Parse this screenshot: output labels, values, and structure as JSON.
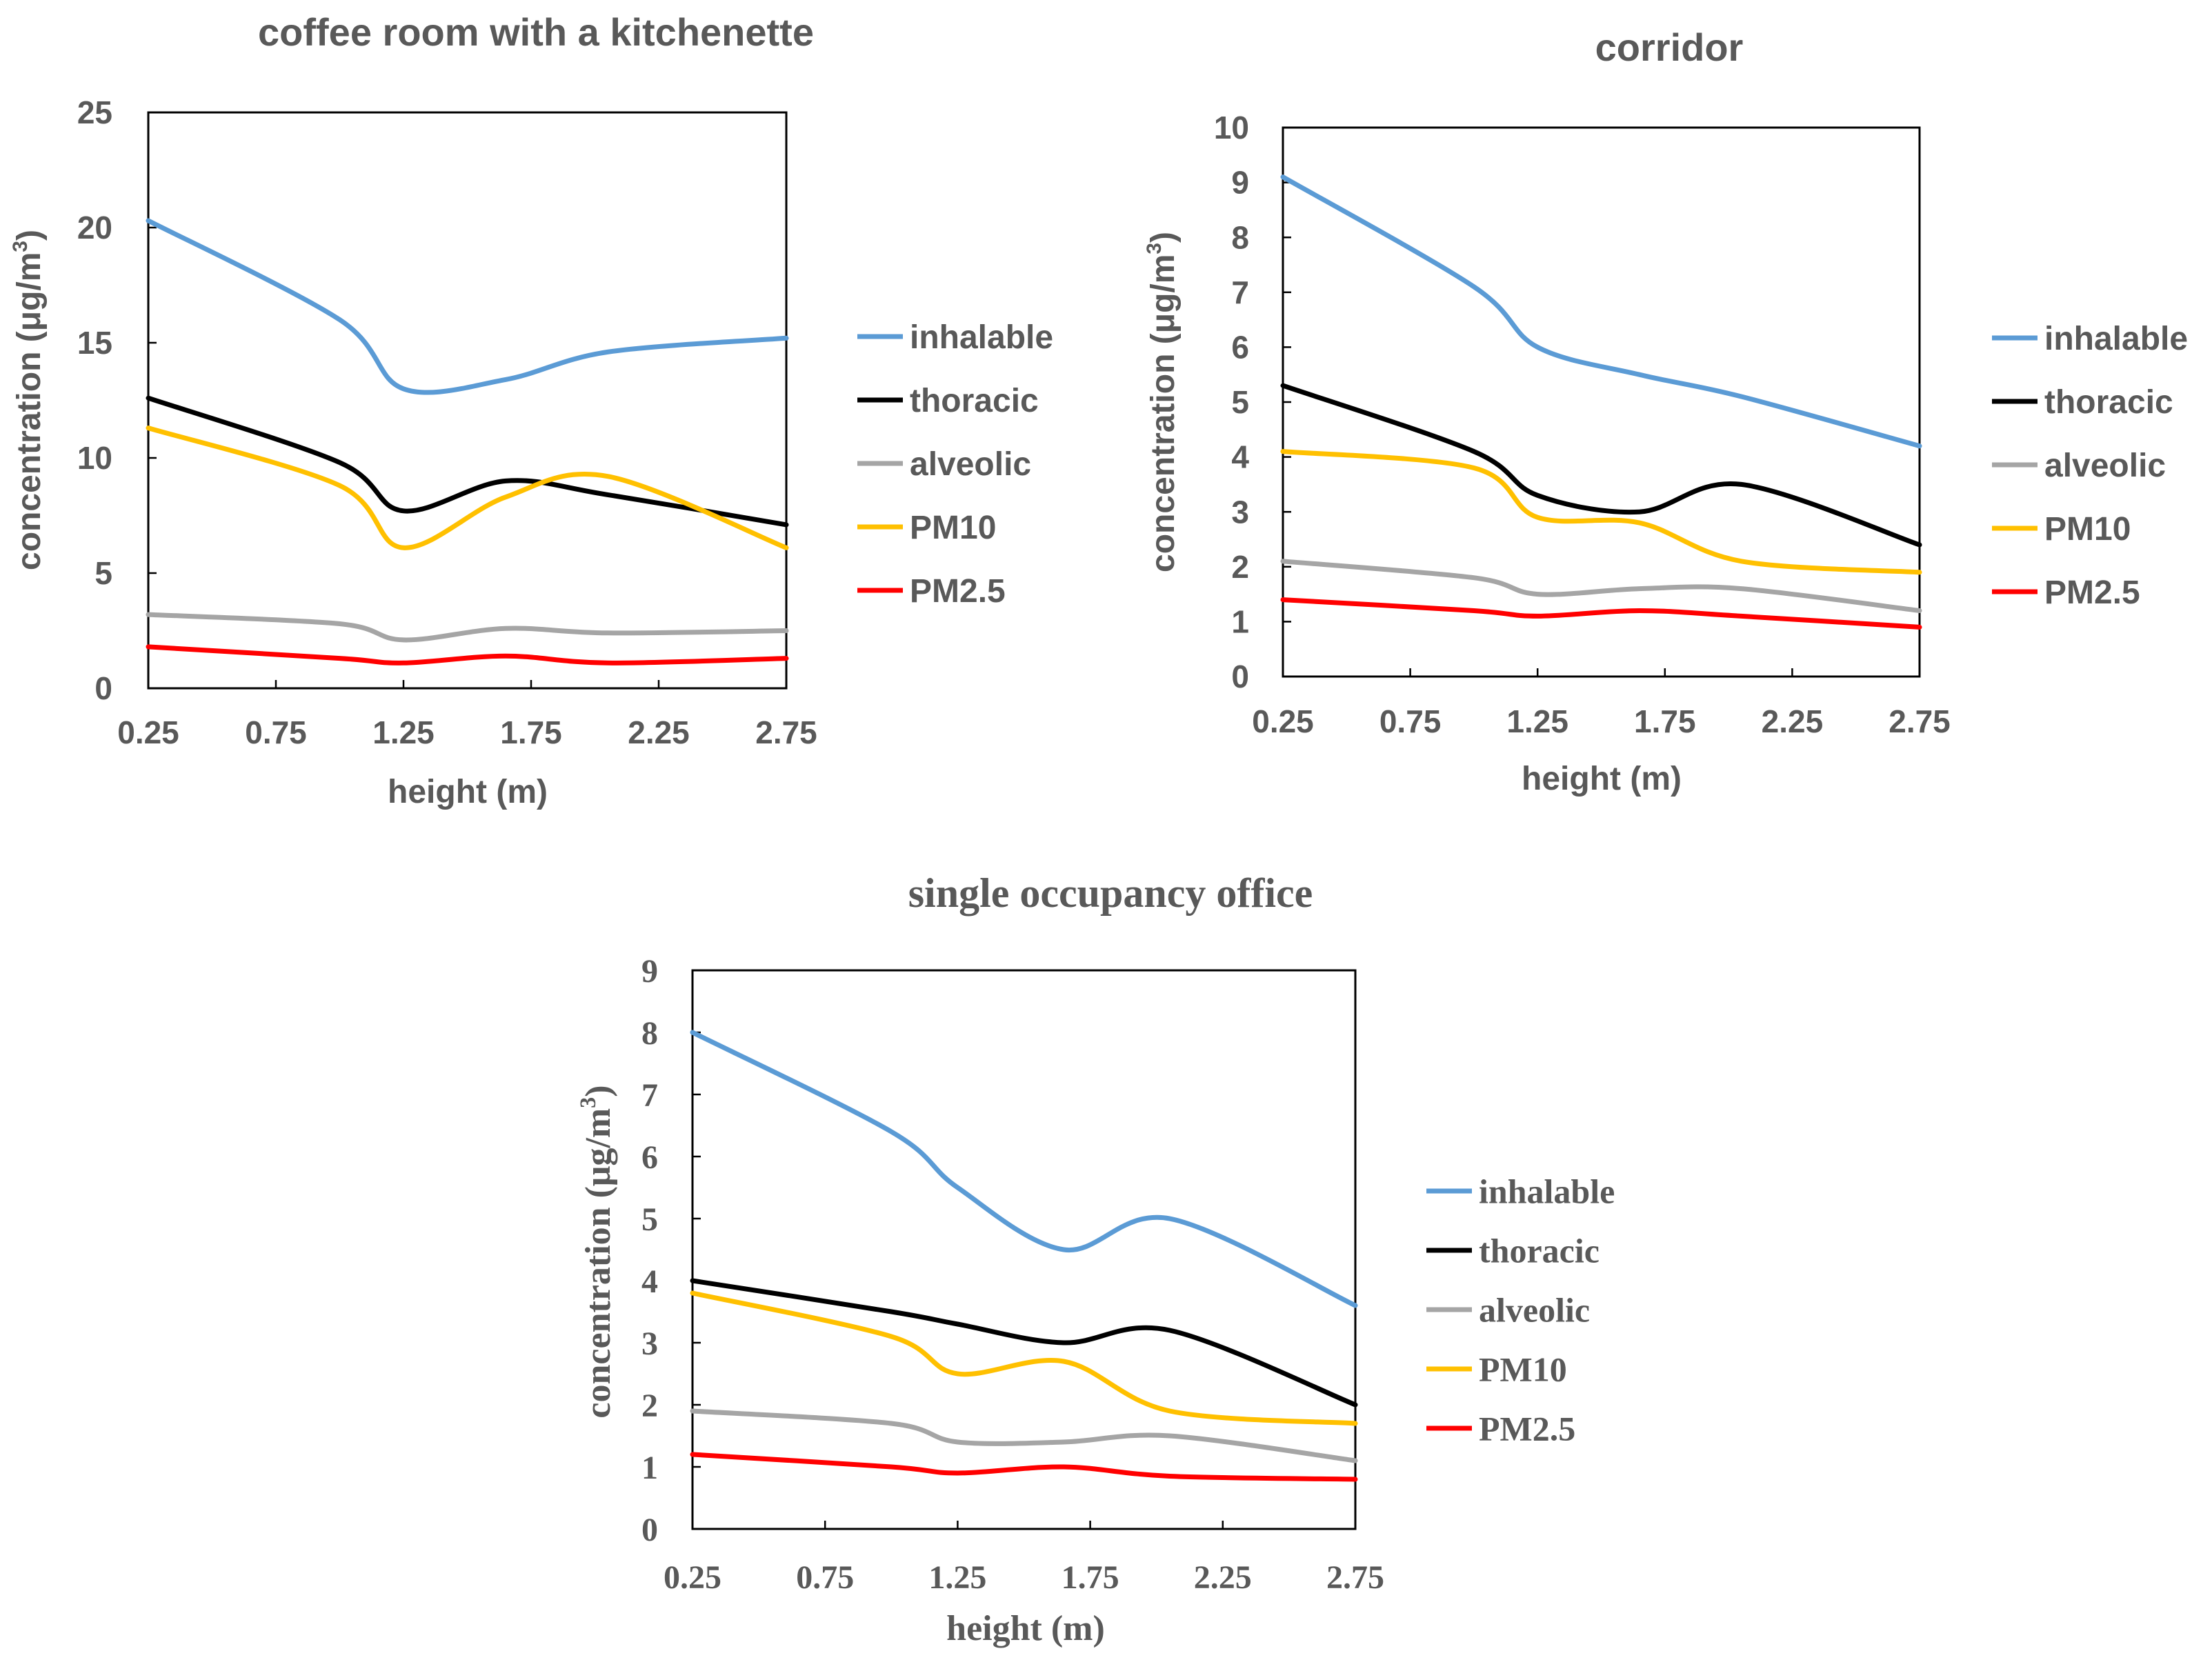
{
  "chart_data": [
    {
      "type": "line",
      "title": "coffee room with a kitchenette",
      "xlabel": "height (m)",
      "ylabel": "concentration (μg/m3)",
      "ylabel_main": "concentration (μg/m",
      "ylabel_sup": "3",
      "ylabel_close": ")",
      "x": [
        0.25,
        0.75,
        1.25,
        1.75,
        2.25,
        2.75
      ],
      "xticks": [
        "0.25",
        "0.75",
        "1.25",
        "1.75",
        "2.25",
        "2.75"
      ],
      "xlim": [
        0.25,
        2.75
      ],
      "ylim": [
        0,
        25
      ],
      "yticks": [
        "0",
        "5",
        "10",
        "15",
        "20",
        "25"
      ],
      "legend_position": "right",
      "series": [
        {
          "name": "inhalable",
          "color": "#5B9BD5",
          "x": [
            0.25,
            1.0,
            1.25,
            1.65,
            2.05,
            2.75
          ],
          "values": [
            20.3,
            16.0,
            13.0,
            13.4,
            14.6,
            15.2
          ]
        },
        {
          "name": "thoracic",
          "color": "#000000",
          "x": [
            0.25,
            1.0,
            1.25,
            1.65,
            2.05,
            2.75
          ],
          "values": [
            12.6,
            9.8,
            7.7,
            9.0,
            8.4,
            7.1
          ]
        },
        {
          "name": "alveolic",
          "color": "#A5A5A5",
          "x": [
            0.25,
            1.0,
            1.25,
            1.65,
            2.05,
            2.75
          ],
          "values": [
            3.2,
            2.8,
            2.1,
            2.6,
            2.4,
            2.5
          ]
        },
        {
          "name": "PM10",
          "color": "#FFC000",
          "x": [
            0.25,
            1.0,
            1.25,
            1.65,
            2.05,
            2.75
          ],
          "values": [
            11.3,
            8.8,
            6.1,
            8.3,
            9.2,
            6.1
          ]
        },
        {
          "name": "PM2.5",
          "color": "#FF0000",
          "x": [
            0.25,
            1.0,
            1.25,
            1.65,
            2.05,
            2.75
          ],
          "values": [
            1.8,
            1.3,
            1.1,
            1.4,
            1.1,
            1.3
          ]
        }
      ]
    },
    {
      "type": "line",
      "title": "corridor",
      "xlabel": "height (m)",
      "ylabel": "concentration (μg/m3)",
      "ylabel_main": "concentration (μg/m",
      "ylabel_sup": "3",
      "ylabel_close": ")",
      "x": [
        0.25,
        0.75,
        1.25,
        1.75,
        2.25,
        2.75
      ],
      "xticks": [
        "0.25",
        "0.75",
        "1.25",
        "1.75",
        "2.25",
        "2.75"
      ],
      "xlim": [
        0.25,
        2.75
      ],
      "ylim": [
        0,
        10
      ],
      "yticks": [
        "0",
        "1",
        "2",
        "3",
        "4",
        "5",
        "6",
        "7",
        "8",
        "9",
        "10"
      ],
      "legend_position": "right",
      "series": [
        {
          "name": "inhalable",
          "color": "#5B9BD5",
          "x": [
            0.25,
            1.0,
            1.25,
            1.65,
            2.05,
            2.75
          ],
          "values": [
            9.1,
            7.1,
            6.0,
            5.5,
            5.1,
            4.2
          ]
        },
        {
          "name": "thoracic",
          "color": "#000000",
          "x": [
            0.25,
            1.0,
            1.25,
            1.65,
            2.05,
            2.75
          ],
          "values": [
            5.3,
            4.1,
            3.3,
            3.0,
            3.5,
            2.4
          ]
        },
        {
          "name": "alveolic",
          "color": "#A5A5A5",
          "x": [
            0.25,
            1.0,
            1.25,
            1.65,
            2.05,
            2.75
          ],
          "values": [
            2.1,
            1.8,
            1.5,
            1.6,
            1.6,
            1.2
          ]
        },
        {
          "name": "PM10",
          "color": "#FFC000",
          "x": [
            0.25,
            1.0,
            1.25,
            1.65,
            2.05,
            2.75
          ],
          "values": [
            4.1,
            3.8,
            2.9,
            2.8,
            2.1,
            1.9
          ]
        },
        {
          "name": "PM2.5",
          "color": "#FF0000",
          "x": [
            0.25,
            1.0,
            1.25,
            1.65,
            2.05,
            2.75
          ],
          "values": [
            1.4,
            1.2,
            1.1,
            1.2,
            1.1,
            0.9
          ]
        }
      ]
    },
    {
      "type": "line",
      "title": "single occupancy office",
      "xlabel": "height (m)",
      "ylabel": "concentration (μg/m3)",
      "ylabel_main": "concentration (μg/m",
      "ylabel_sup": "3",
      "ylabel_close": ")",
      "x": [
        0.25,
        0.75,
        1.25,
        1.75,
        2.25,
        2.75
      ],
      "xticks": [
        "0.25",
        "0.75",
        "1.25",
        "1.75",
        "2.25",
        "2.75"
      ],
      "xlim": [
        0.25,
        2.75
      ],
      "ylim": [
        0,
        9
      ],
      "yticks": [
        "0",
        "1",
        "2",
        "3",
        "4",
        "5",
        "6",
        "7",
        "8",
        "9"
      ],
      "legend_position": "right",
      "series": [
        {
          "name": "inhalable",
          "color": "#5B9BD5",
          "x": [
            0.25,
            1.0,
            1.25,
            1.65,
            2.05,
            2.75
          ],
          "values": [
            8.0,
            6.4,
            5.5,
            4.5,
            5.0,
            3.6
          ]
        },
        {
          "name": "thoracic",
          "color": "#000000",
          "x": [
            0.25,
            1.0,
            1.25,
            1.65,
            2.05,
            2.75
          ],
          "values": [
            4.0,
            3.5,
            3.3,
            3.0,
            3.2,
            2.0
          ]
        },
        {
          "name": "alveolic",
          "color": "#A5A5A5",
          "x": [
            0.25,
            1.0,
            1.25,
            1.65,
            2.05,
            2.75
          ],
          "values": [
            1.9,
            1.7,
            1.4,
            1.4,
            1.5,
            1.1
          ]
        },
        {
          "name": "PM10",
          "color": "#FFC000",
          "x": [
            0.25,
            1.0,
            1.25,
            1.65,
            2.05,
            2.75
          ],
          "values": [
            3.8,
            3.1,
            2.5,
            2.7,
            1.9,
            1.7
          ]
        },
        {
          "name": "PM2.5",
          "color": "#FF0000",
          "x": [
            0.25,
            1.0,
            1.25,
            1.65,
            2.05,
            2.75
          ],
          "values": [
            1.2,
            1.0,
            0.9,
            1.0,
            0.85,
            0.8
          ]
        }
      ]
    }
  ]
}
